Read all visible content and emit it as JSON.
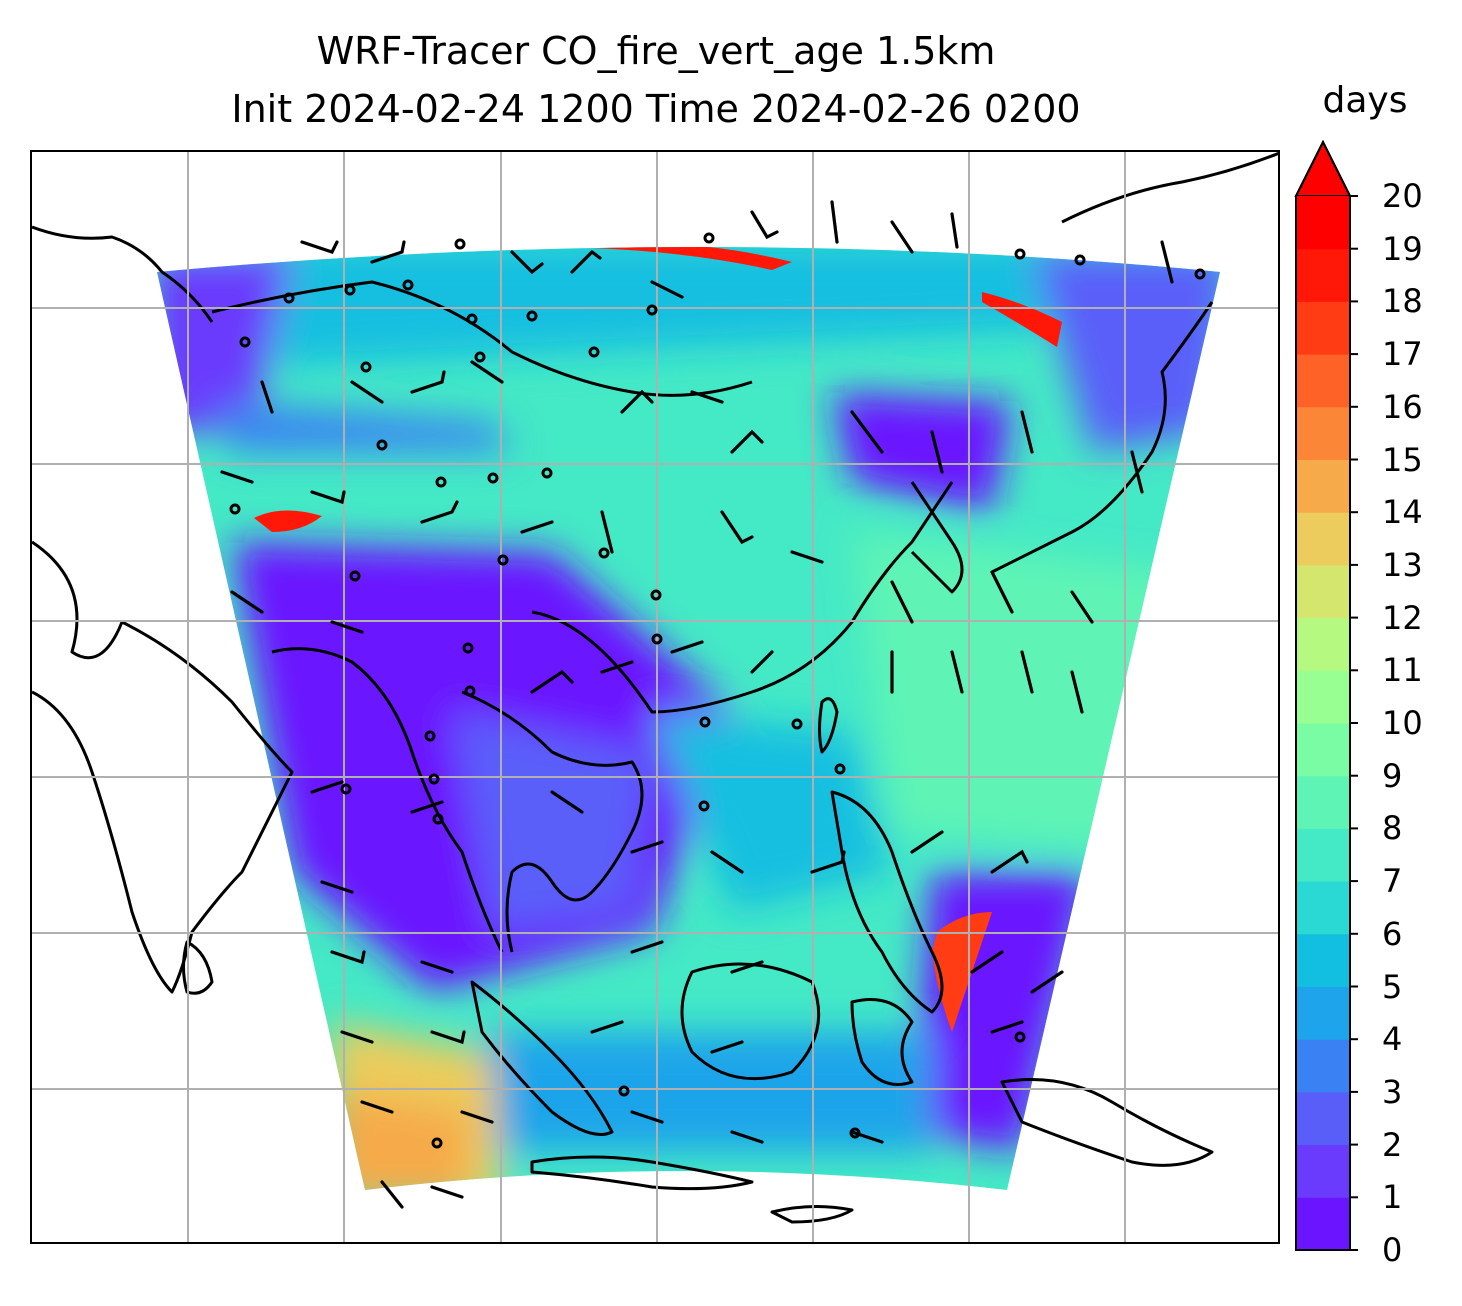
{
  "title": {
    "line1": "WRF-Tracer CO_fire_vert_age 1.5km",
    "line2": "Init 2024-02-24 1200 Time 2024-02-26 0200"
  },
  "colorbar": {
    "units": "days",
    "ticks": [
      "0",
      "1",
      "2",
      "3",
      "4",
      "5",
      "6",
      "7",
      "8",
      "9",
      "10",
      "11",
      "12",
      "13",
      "14",
      "15",
      "16",
      "17",
      "18",
      "19",
      "20"
    ],
    "extend": "max",
    "colormap": "rainbow",
    "colors": [
      "#6a14ff",
      "#6a3afd",
      "#5a5ef9",
      "#3a82f3",
      "#1da4ea",
      "#12bfe0",
      "#2ad8d4",
      "#44e9c6",
      "#5ef4b6",
      "#7afca4",
      "#98ff92",
      "#b6f980",
      "#d4e66e",
      "#eccc5c",
      "#f6aa4a",
      "#fc8638",
      "#ff6226",
      "#ff3c14",
      "#ff1808",
      "#ff0000"
    ],
    "extend_color": "#ff0000"
  },
  "map": {
    "field": "CO_fire_vert_age",
    "level": "1.5km",
    "gridlines": true,
    "coastlines": true,
    "wind_barbs": true,
    "colors": {
      "low_age": "#6a14ff",
      "mid_age": "#12bfe0",
      "high_age": "#5ef4b6",
      "old_age": "#f0c060",
      "fire": "#ff1000"
    }
  }
}
